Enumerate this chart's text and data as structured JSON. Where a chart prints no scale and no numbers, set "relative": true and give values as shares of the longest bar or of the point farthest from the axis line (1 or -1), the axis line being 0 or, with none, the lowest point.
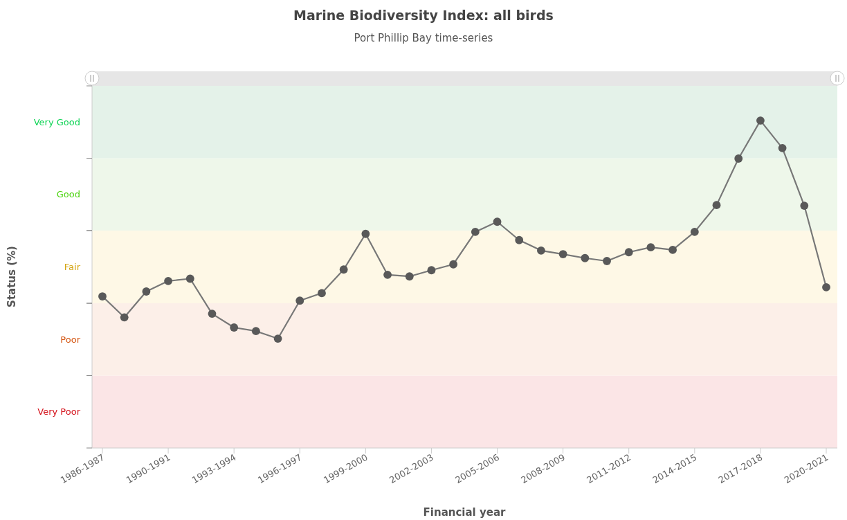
{
  "chart_data": {
    "type": "line",
    "title": "Marine Biodiversity Index: all birds",
    "subtitle": "Port Phillip Bay time-series",
    "xlabel": "Financial year",
    "ylabel": "Status (%)",
    "categories": [
      "1986-1987",
      null,
      null,
      "1990-1991",
      null,
      null,
      "1993-1994",
      null,
      null,
      "1996-1997",
      null,
      null,
      "1999-2000",
      null,
      null,
      "2002-2003",
      null,
      null,
      "2005-2006",
      null,
      null,
      "2008-2009",
      null,
      null,
      "2011-2012",
      null,
      null,
      "2014-2015",
      null,
      null,
      "2017-2018",
      null,
      null,
      "2020-2021"
    ],
    "relative": true,
    "series": [
      {
        "color": "#777777",
        "values": [
          0.463,
          0.399,
          0.478,
          0.51,
          0.517,
          0.41,
          0.368,
          0.357,
          0.334,
          0.45,
          0.473,
          0.545,
          0.654,
          0.529,
          0.524,
          0.543,
          0.561,
          0.66,
          0.691,
          0.635,
          0.603,
          0.592,
          0.58,
          0.571,
          0.598,
          0.613,
          0.605,
          0.66,
          0.742,
          0.884,
          1,
          0.916,
          0.74,
          0.491
        ]
      }
    ],
    "bands": [
      {
        "axis": "y",
        "from": 0,
        "to": 0.221,
        "label": "Very Poor",
        "color": "#fbe5e6"
      },
      {
        "axis": "y",
        "from": 0.221,
        "to": 0.442,
        "label": "Poor",
        "color": "#fcefe8"
      },
      {
        "axis": "y",
        "from": 0.442,
        "to": 0.664,
        "label": "Fair",
        "color": "#fef8e6"
      },
      {
        "axis": "y",
        "from": 0.664,
        "to": 0.885,
        "label": "Good",
        "color": "#eef7ea"
      },
      {
        "axis": "y",
        "from": 0.885,
        "to": 1.106,
        "label": "Very Good",
        "color": "#e4f2e9"
      }
    ],
    "marker": "circle"
  }
}
